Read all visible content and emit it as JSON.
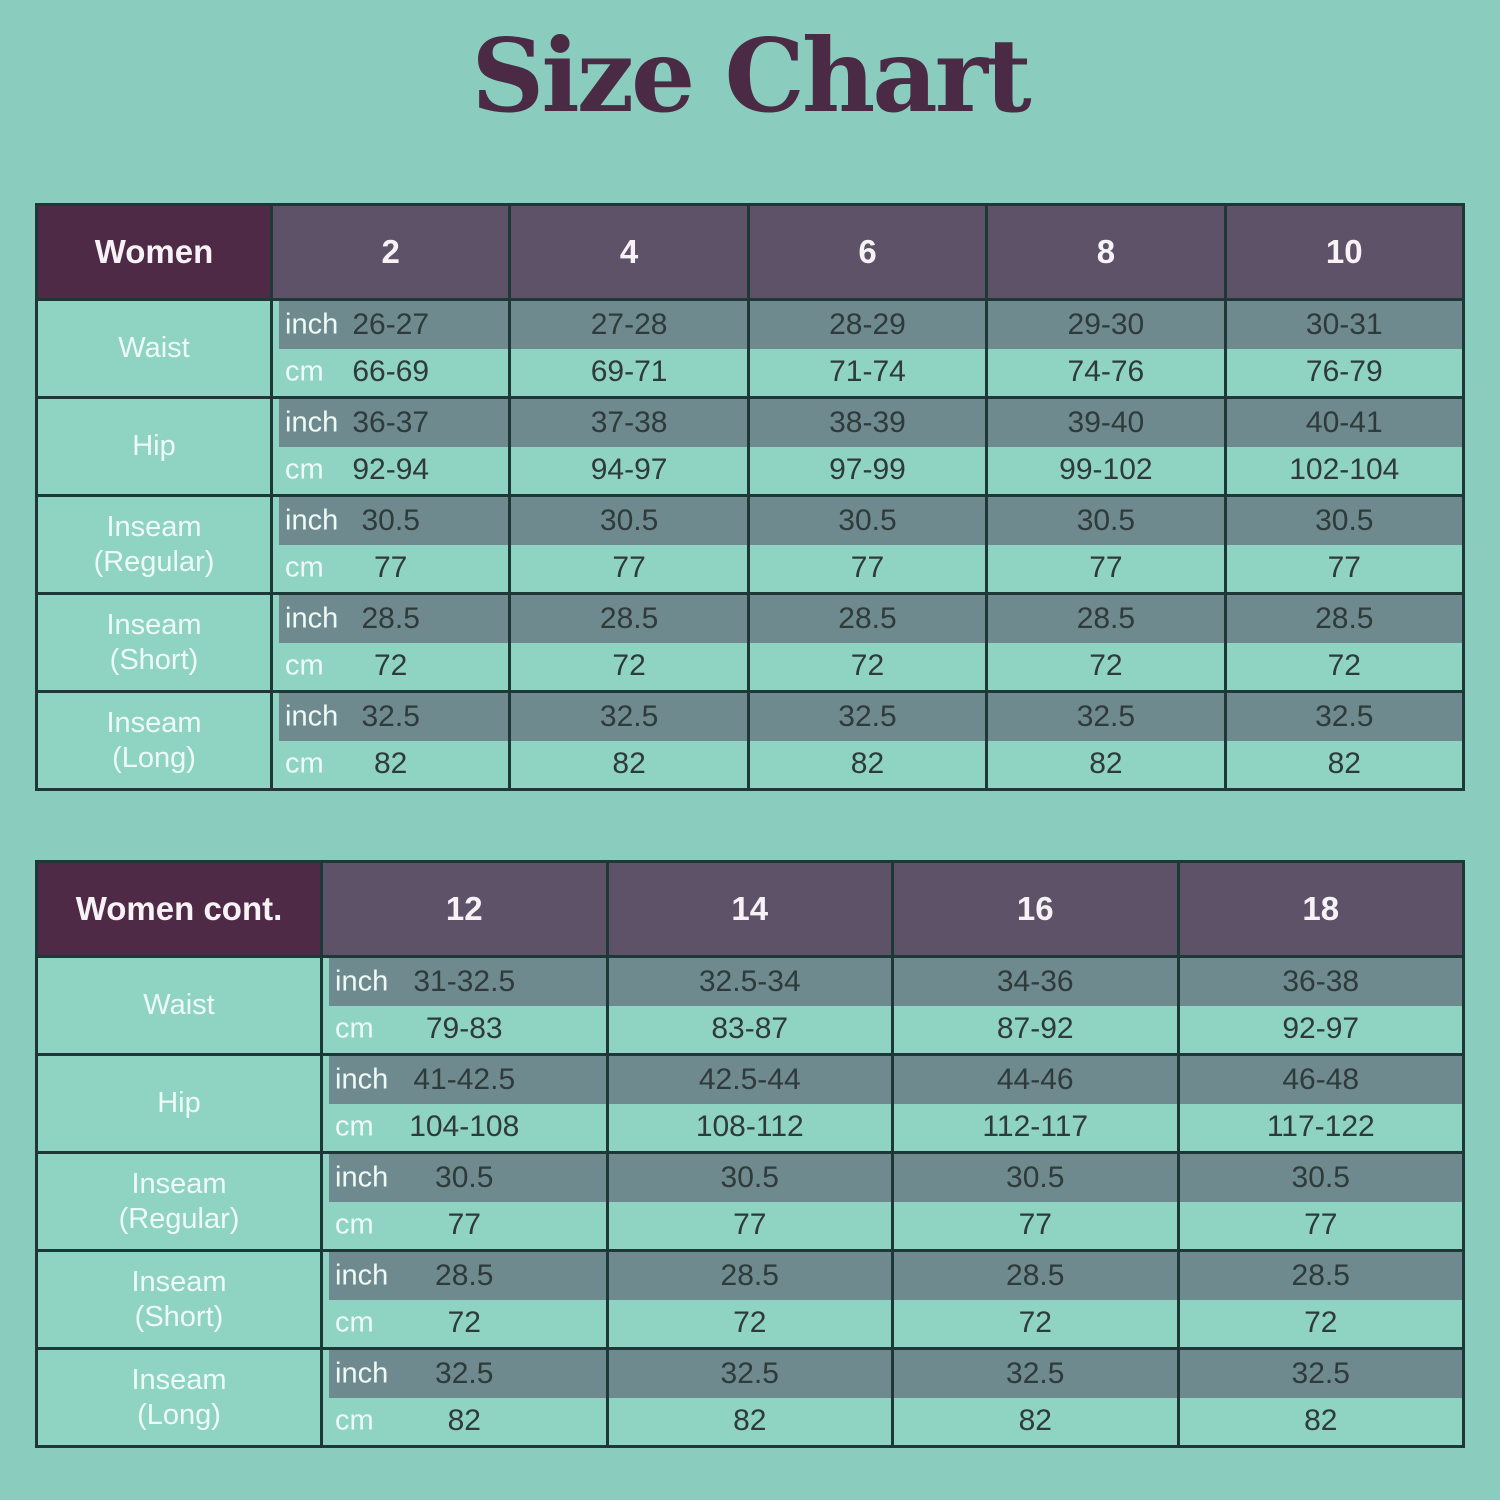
{
  "page": {
    "title": "Size Chart"
  },
  "colors": {
    "background": "#8accbd",
    "title_text": "#4a2a45",
    "header_dark": "#4f2a46",
    "header_size": "#5d5267",
    "header_text": "#f6f2f5",
    "inch_stripe": "#6e8a8e",
    "mint_cell": "#8fd3c3",
    "border": "#1e3837",
    "value_text": "#2f3a3b",
    "light_text": "#eefaf6"
  },
  "unit_labels": {
    "inch": "inch",
    "cm": "cm"
  },
  "tables": [
    {
      "name": "women-size-table",
      "header": {
        "label": "Women",
        "sizes": [
          "2",
          "4",
          "6",
          "8",
          "10"
        ]
      },
      "rows": [
        {
          "label_lines": [
            "Waist"
          ],
          "inch": [
            "26-27",
            "27-28",
            "28-29",
            "29-30",
            "30-31"
          ],
          "cm": [
            "66-69",
            "69-71",
            "71-74",
            "74-76",
            "76-79"
          ]
        },
        {
          "label_lines": [
            "Hip"
          ],
          "inch": [
            "36-37",
            "37-38",
            "38-39",
            "39-40",
            "40-41"
          ],
          "cm": [
            "92-94",
            "94-97",
            "97-99",
            "99-102",
            "102-104"
          ]
        },
        {
          "label_lines": [
            "Inseam",
            "(Regular)"
          ],
          "inch": [
            "30.5",
            "30.5",
            "30.5",
            "30.5",
            "30.5"
          ],
          "cm": [
            "77",
            "77",
            "77",
            "77",
            "77"
          ]
        },
        {
          "label_lines": [
            "Inseam",
            "(Short)"
          ],
          "inch": [
            "28.5",
            "28.5",
            "28.5",
            "28.5",
            "28.5"
          ],
          "cm": [
            "72",
            "72",
            "72",
            "72",
            "72"
          ]
        },
        {
          "label_lines": [
            "Inseam",
            "(Long)"
          ],
          "inch": [
            "32.5",
            "32.5",
            "32.5",
            "32.5",
            "32.5"
          ],
          "cm": [
            "82",
            "82",
            "82",
            "82",
            "82"
          ]
        }
      ]
    },
    {
      "name": "women-cont-size-table",
      "header": {
        "label": "Women cont.",
        "sizes": [
          "12",
          "14",
          "16",
          "18"
        ]
      },
      "rows": [
        {
          "label_lines": [
            "Waist"
          ],
          "inch": [
            "31-32.5",
            "32.5-34",
            "34-36",
            "36-38"
          ],
          "cm": [
            "79-83",
            "83-87",
            "87-92",
            "92-97"
          ]
        },
        {
          "label_lines": [
            "Hip"
          ],
          "inch": [
            "41-42.5",
            "42.5-44",
            "44-46",
            "46-48"
          ],
          "cm": [
            "104-108",
            "108-112",
            "112-117",
            "117-122"
          ]
        },
        {
          "label_lines": [
            "Inseam",
            "(Regular)"
          ],
          "inch": [
            "30.5",
            "30.5",
            "30.5",
            "30.5"
          ],
          "cm": [
            "77",
            "77",
            "77",
            "77"
          ]
        },
        {
          "label_lines": [
            "Inseam",
            "(Short)"
          ],
          "inch": [
            "28.5",
            "28.5",
            "28.5",
            "28.5"
          ],
          "cm": [
            "72",
            "72",
            "72",
            "72"
          ]
        },
        {
          "label_lines": [
            "Inseam",
            "(Long)"
          ],
          "inch": [
            "32.5",
            "32.5",
            "32.5",
            "32.5"
          ],
          "cm": [
            "82",
            "82",
            "82",
            "82"
          ]
        }
      ]
    }
  ]
}
